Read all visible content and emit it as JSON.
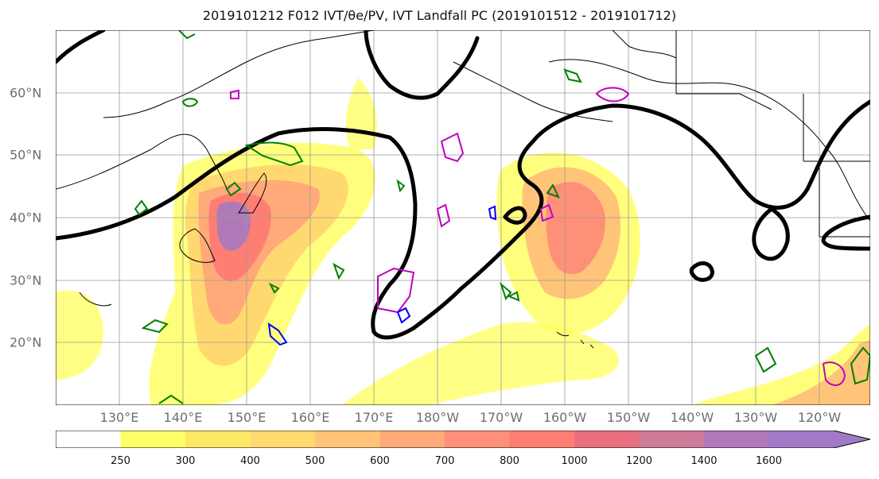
{
  "title": "2019101212 F012 IVT/θe/PV, IVT Landfall PC (2019101512 - 2019101712)",
  "map": {
    "lat_labels": [
      "60°N",
      "50°N",
      "40°N",
      "30°N",
      "20°N"
    ],
    "lon_labels": [
      "130°E",
      "140°E",
      "150°E",
      "160°E",
      "170°E",
      "180°W",
      "170°W",
      "160°W",
      "150°W",
      "140°W",
      "130°W",
      "120°W"
    ],
    "colors": {
      "coast": "#000000",
      "pc_contour": "#000000",
      "theta_e": "#008000",
      "pv_pos": "#c000c0",
      "pv_neg": "#0000ff",
      "grid": "#9a9a9a"
    }
  },
  "colorbar": {
    "ticks": [
      "250",
      "300",
      "400",
      "500",
      "600",
      "700",
      "800",
      "1000",
      "1200",
      "1400",
      "1600"
    ],
    "colors": [
      "#ffff66",
      "#ffe866",
      "#ffd870",
      "#ffc478",
      "#ffaa78",
      "#ff9078",
      "#ff7e74",
      "#e8707e",
      "#d07a9a",
      "#b07ab8",
      "#a07ac8"
    ]
  }
}
